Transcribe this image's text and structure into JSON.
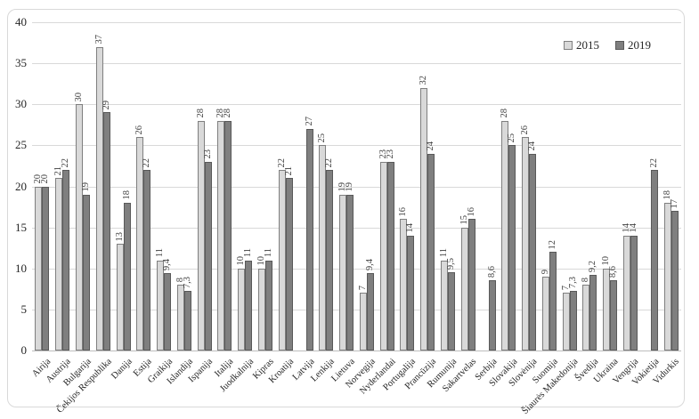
{
  "legend": {
    "position": "top-right",
    "items": [
      {
        "label": "2015",
        "swatch_color": "#d9d9d9"
      },
      {
        "label": "2019",
        "swatch_color": "#7f7f7f"
      }
    ]
  },
  "chart_data": {
    "type": "bar",
    "title": "",
    "xlabel": "",
    "ylabel": "",
    "ylim": [
      0,
      40
    ],
    "yticks": [
      "0",
      "5",
      "10",
      "15",
      "20",
      "25",
      "30",
      "35",
      "40"
    ],
    "grid": true,
    "legend_position": "top-right",
    "decimal_separator": ",",
    "value_label_rotation": -90,
    "category_label_rotation": 45,
    "categories": [
      "Airija",
      "Austrija",
      "Bulgarija",
      "Čekijos Respublika",
      "Danija",
      "Estija",
      "Graikija",
      "Islandija",
      "Ispanija",
      "Italija",
      "Juodkalnija",
      "Kipras",
      "Kroatija",
      "Latvija",
      "Lenkija",
      "Lietuva",
      "Norvegija",
      "Nyderlandai",
      "Portugalija",
      "Prancūzija",
      "Rumunija",
      "Sakartvelas",
      "Serbija",
      "Slovakija",
      "Slovėnija",
      "Suomija",
      "Šiaurės Makedonija",
      "Švedija",
      "Ukraina",
      "Vengrija",
      "Vokietija",
      "Vidurkis"
    ],
    "series": [
      {
        "name": "2015",
        "color": "#d9d9d9",
        "border_color": "#7f7f7f",
        "values": [
          20,
          21,
          30,
          37,
          13,
          26,
          11,
          8,
          28,
          28,
          10,
          10,
          22,
          null,
          25,
          19,
          7,
          23,
          16,
          32,
          11,
          15,
          null,
          28,
          26,
          9,
          7,
          8,
          10,
          14,
          null,
          18
        ],
        "labels": [
          "20",
          "21",
          "30",
          "37",
          "13",
          "26",
          "11",
          "8",
          "28",
          "28",
          "10",
          "10",
          "22",
          null,
          "25",
          "19",
          "7",
          "23",
          "16",
          "32",
          "11",
          "15",
          null,
          "28",
          "26",
          "9",
          "7",
          "8",
          "10",
          "14",
          null,
          "18"
        ]
      },
      {
        "name": "2019",
        "color": "#7f7f7f",
        "border_color": "#595959",
        "values": [
          20,
          22,
          19,
          29,
          18,
          22,
          9.4,
          7.3,
          23,
          28,
          11,
          11,
          21,
          27,
          22,
          19,
          9.4,
          23,
          14,
          24,
          9.5,
          16,
          8.6,
          25,
          24,
          12,
          7.3,
          9.2,
          8.6,
          14,
          22,
          17
        ],
        "labels": [
          "20",
          "22",
          "19",
          "29",
          "18",
          "22",
          "9,4",
          "7,3",
          "23",
          "28",
          "11",
          "11",
          "21",
          "27",
          "22",
          "19",
          "9,4",
          "23",
          "14",
          "24",
          "9,5",
          "16",
          "8,6",
          "25",
          "24",
          "12",
          "7,3",
          "9,2",
          "8,6",
          "14",
          "22",
          "17"
        ]
      }
    ]
  }
}
